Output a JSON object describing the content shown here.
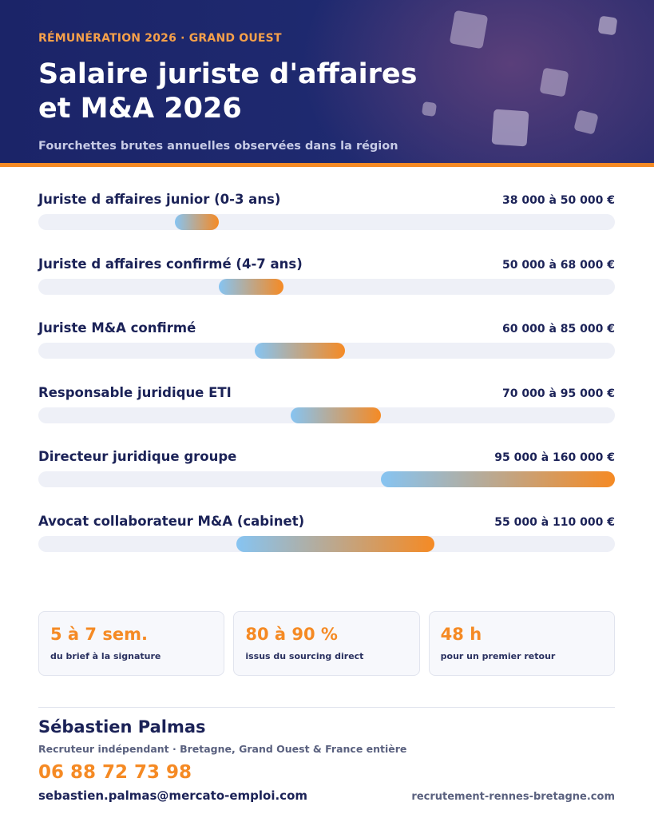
{
  "header": {
    "eyebrow": "RÉMUNÉRATION 2026 · GRAND OUEST",
    "title": "Salaire juriste d'affaires et M&A 2026",
    "subtitle": "Fourchettes brutes annuelles observées dans la région"
  },
  "colors": {
    "navy": "#1b2257",
    "orange": "#f58a24",
    "bar_start": "#86c4f2",
    "track": "#eef0f7"
  },
  "scale": {
    "min": 0,
    "max": 160000
  },
  "salaries": [
    {
      "label": "Juriste d affaires junior (0-3 ans)",
      "range": "38 000 à 50 000 €",
      "min": 38000,
      "max": 50000
    },
    {
      "label": "Juriste d affaires confirmé (4-7 ans)",
      "range": "50 000 à 68 000 €",
      "min": 50000,
      "max": 68000
    },
    {
      "label": "Juriste M&A confirmé",
      "range": "60 000 à 85 000 €",
      "min": 60000,
      "max": 85000
    },
    {
      "label": "Responsable juridique ETI",
      "range": "70 000 à 95 000 €",
      "min": 70000,
      "max": 95000
    },
    {
      "label": "Directeur juridique groupe",
      "range": "95 000 à 160 000 €",
      "min": 95000,
      "max": 160000
    },
    {
      "label": "Avocat collaborateur M&A (cabinet)",
      "range": "55 000 à 110 000 €",
      "min": 55000,
      "max": 110000
    }
  ],
  "stats": [
    {
      "value": "5 à 7 sem.",
      "label": "du brief à la signature"
    },
    {
      "value": "80 à 90 %",
      "label": "issus du sourcing direct"
    },
    {
      "value": "48 h",
      "label": "pour un premier retour"
    }
  ],
  "contact": {
    "name": "Sébastien Palmas",
    "role": "Recruteur indépendant · Bretagne, Grand Ouest & France entière",
    "phone": "06 88 72 73 98",
    "email": "sebastien.palmas@mercato-emploi.com",
    "website": "recrutement-rennes-bretagne.com"
  }
}
